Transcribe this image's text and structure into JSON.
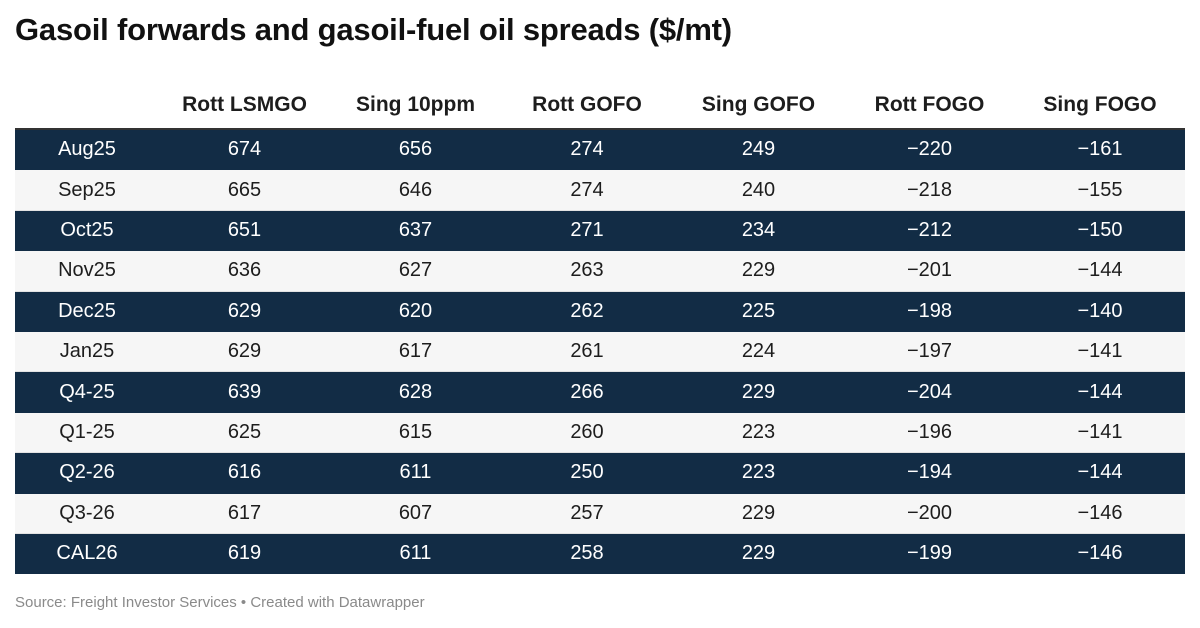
{
  "title": "Gasoil forwards and gasoil-fuel oil spreads ($/mt)",
  "source_line": "Source: Freight Investor Services • Created with Datawrapper",
  "colors": {
    "dark_row": "#122c45",
    "light_row": "#f6f6f6",
    "dark_text": "#ffffff",
    "light_text": "#1d1d1d"
  },
  "chart_data": {
    "type": "table",
    "title": "Gasoil forwards and gasoil-fuel oil spreads ($/mt)",
    "columns": [
      "",
      "Rott LSMGO",
      "Sing 10ppm",
      "Rott GOFO",
      "Sing GOFO",
      "Rott FOGO",
      "Sing FOGO"
    ],
    "rows": [
      {
        "label": "Aug25",
        "values": [
          "674",
          "656",
          "274",
          "249",
          "−220",
          "−161"
        ]
      },
      {
        "label": "Sep25",
        "values": [
          "665",
          "646",
          "274",
          "240",
          "−218",
          "−155"
        ]
      },
      {
        "label": "Oct25",
        "values": [
          "651",
          "637",
          "271",
          "234",
          "−212",
          "−150"
        ]
      },
      {
        "label": "Nov25",
        "values": [
          "636",
          "627",
          "263",
          "229",
          "−201",
          "−144"
        ]
      },
      {
        "label": "Dec25",
        "values": [
          "629",
          "620",
          "262",
          "225",
          "−198",
          "−140"
        ]
      },
      {
        "label": "Jan25",
        "values": [
          "629",
          "617",
          "261",
          "224",
          "−197",
          "−141"
        ]
      },
      {
        "label": "Q4-25",
        "values": [
          "639",
          "628",
          "266",
          "229",
          "−204",
          "−144"
        ]
      },
      {
        "label": "Q1-25",
        "values": [
          "625",
          "615",
          "260",
          "223",
          "−196",
          "−141"
        ]
      },
      {
        "label": "Q2-26",
        "values": [
          "616",
          "611",
          "250",
          "223",
          "−194",
          "−144"
        ]
      },
      {
        "label": "Q3-26",
        "values": [
          "617",
          "607",
          "257",
          "229",
          "−200",
          "−146"
        ]
      },
      {
        "label": "CAL26",
        "values": [
          "619",
          "611",
          "258",
          "229",
          "−199",
          "−146"
        ]
      }
    ]
  }
}
